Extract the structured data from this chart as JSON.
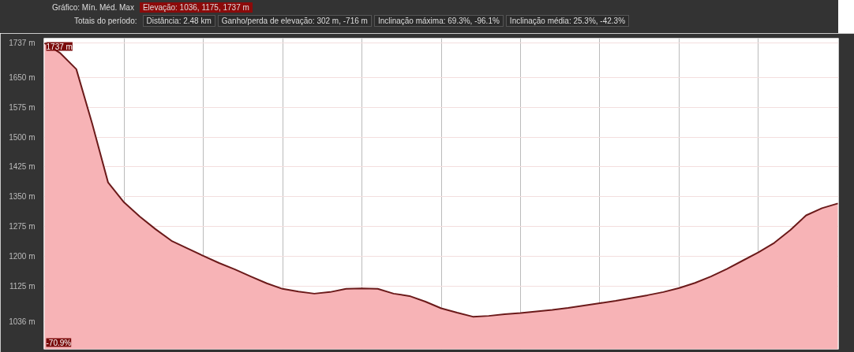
{
  "chart_data": {
    "type": "area",
    "annotations": [
      "Gráfico: Mín. Méd. Max",
      "Elevação: 1036, 1175, 1737 m",
      "Totais do período:",
      "Distância: 2.48 km",
      "Ganho/perda de elevação: 302 m, -716 m",
      "Inclinação máxima: 69.3%, -96.1%",
      "Inclinação média: 25.3%, -42.3%",
      "1737 m",
      "-70.9%"
    ],
    "categories": [
      null,
      null,
      null,
      null,
      null,
      null,
      null,
      null,
      null,
      null,
      null,
      null,
      null,
      null,
      null,
      null,
      null,
      null,
      null,
      null,
      null,
      null,
      null,
      null,
      null,
      null,
      null,
      null,
      null,
      null,
      null,
      null,
      null,
      null,
      null,
      null,
      null,
      null,
      null,
      null,
      null,
      null,
      null,
      null,
      null,
      null,
      null,
      null,
      null,
      null,
      null
    ],
    "series": [
      {
        "color": "#f7b3b6",
        "values": [
          1737,
          1711,
          1671,
          1534,
          1386,
          1336,
          1300,
          1268,
          1239,
          1220,
          1201,
          1183,
          1167,
          1149,
          1132,
          1118,
          1111,
          1106,
          1110,
          1118,
          1119,
          1118,
          1106,
          1100,
          1086,
          1069,
          1058,
          1048,
          1050,
          1054,
          1057,
          1061,
          1065,
          1070,
          1076,
          1082,
          1088,
          1095,
          1102,
          1110,
          1120,
          1133,
          1149,
          1168,
          1189,
          1210,
          1234,
          1266,
          1303,
          1321,
          1333
        ]
      }
    ],
    "ylim": [
      966,
      1749
    ],
    "yticks": [
      {
        "value": 1036,
        "label": "1036 m"
      },
      {
        "value": 1125,
        "label": "1125 m"
      },
      {
        "value": 1200,
        "label": "1200 m"
      },
      {
        "value": 1275,
        "label": "1275 m"
      },
      {
        "value": 1350,
        "label": "1350 m"
      },
      {
        "value": 1425,
        "label": "1425 m"
      },
      {
        "value": 1500,
        "label": "1500 m"
      },
      {
        "value": 1575,
        "label": "1575 m"
      },
      {
        "value": 1650,
        "label": "1650 m"
      },
      {
        "value": 1737,
        "label": "1737 m"
      }
    ],
    "grid": true,
    "tick_labels": "y"
  }
}
